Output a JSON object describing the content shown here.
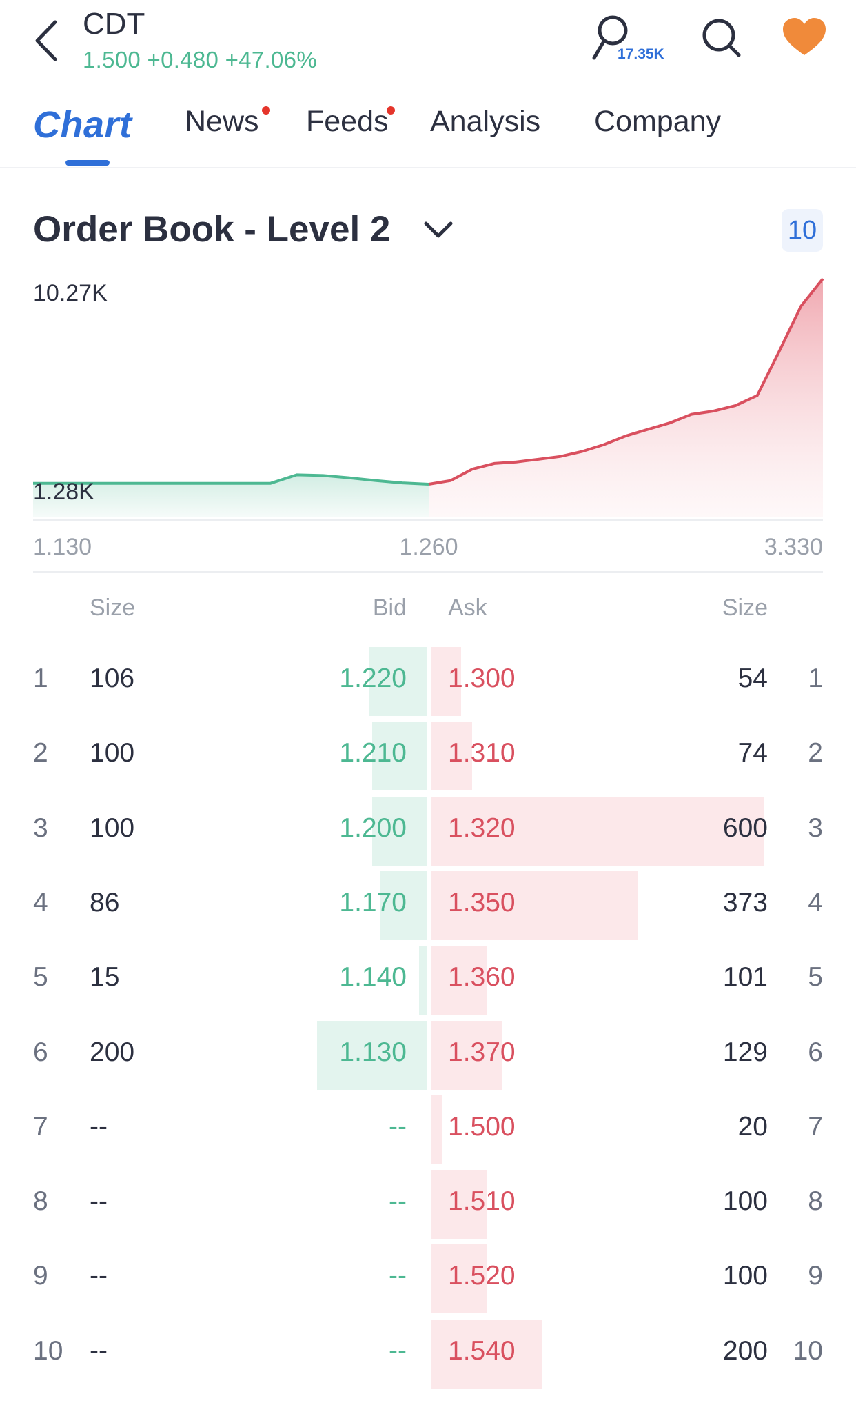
{
  "header": {
    "ticker": "CDT",
    "quote": "1.500 +0.480 +47.06%",
    "watchers": "17.35K"
  },
  "icons": [
    "back-icon",
    "person-icon",
    "search-icon",
    "heart-icon",
    "chevron-down-icon"
  ],
  "colors": {
    "accent": "#2f6fd8",
    "bid": "#4db892",
    "ask": "#d9505f",
    "favorite": "#f08a3a"
  },
  "tabs": [
    {
      "label": "Chart",
      "active": true,
      "dot": false
    },
    {
      "label": "News",
      "active": false,
      "dot": true
    },
    {
      "label": "Feeds",
      "active": false,
      "dot": true
    },
    {
      "label": "Analysis",
      "active": false,
      "dot": false
    },
    {
      "label": "Company",
      "active": false,
      "dot": false
    }
  ],
  "orderbook": {
    "title": "Order Book - Level 2",
    "depth": "10",
    "headers": {
      "size_left": "Size",
      "bid": "Bid",
      "ask": "Ask",
      "size_right": "Size"
    },
    "rows": [
      {
        "idx": "1",
        "bid_size": "106",
        "bid": "1.220",
        "ask": "1.300",
        "ask_size": "54"
      },
      {
        "idx": "2",
        "bid_size": "100",
        "bid": "1.210",
        "ask": "1.310",
        "ask_size": "74"
      },
      {
        "idx": "3",
        "bid_size": "100",
        "bid": "1.200",
        "ask": "1.320",
        "ask_size": "600"
      },
      {
        "idx": "4",
        "bid_size": "86",
        "bid": "1.170",
        "ask": "1.350",
        "ask_size": "373"
      },
      {
        "idx": "5",
        "bid_size": "15",
        "bid": "1.140",
        "ask": "1.360",
        "ask_size": "101"
      },
      {
        "idx": "6",
        "bid_size": "200",
        "bid": "1.130",
        "ask": "1.370",
        "ask_size": "129"
      },
      {
        "idx": "7",
        "bid_size": "--",
        "bid": "--",
        "ask": "1.500",
        "ask_size": "20"
      },
      {
        "idx": "8",
        "bid_size": "--",
        "bid": "--",
        "ask": "1.510",
        "ask_size": "100"
      },
      {
        "idx": "9",
        "bid_size": "--",
        "bid": "--",
        "ask": "1.520",
        "ask_size": "100"
      },
      {
        "idx": "10",
        "bid_size": "--",
        "bid": "--",
        "ask": "1.540",
        "ask_size": "200"
      }
    ]
  },
  "chart_data": {
    "type": "area",
    "title": "",
    "xlabel": "",
    "ylabel": "",
    "y_tick_labels": [
      "10.27K",
      "1.28K"
    ],
    "x_tick_labels": [
      "1.130",
      "1.260",
      "3.330"
    ],
    "grid": false,
    "series": [
      {
        "side": "bid",
        "color": "#4db892",
        "cumulative_volume": [
          1.28,
          1.28,
          1.28,
          1.28,
          1.28,
          1.28,
          1.28,
          1.28,
          1.28,
          1.28,
          1.23,
          1.21,
          1.14,
          1.06,
          0.99,
          0.95
        ]
      },
      {
        "side": "ask",
        "color": "#d9505f",
        "cumulative_volume": [
          0.95,
          1.06,
          1.47,
          1.73,
          1.8,
          1.92,
          2.05,
          2.28,
          2.6,
          3.0,
          3.3,
          3.6,
          4.0,
          4.15,
          4.4,
          4.87,
          6.9,
          9.0,
          10.27
        ]
      }
    ]
  }
}
